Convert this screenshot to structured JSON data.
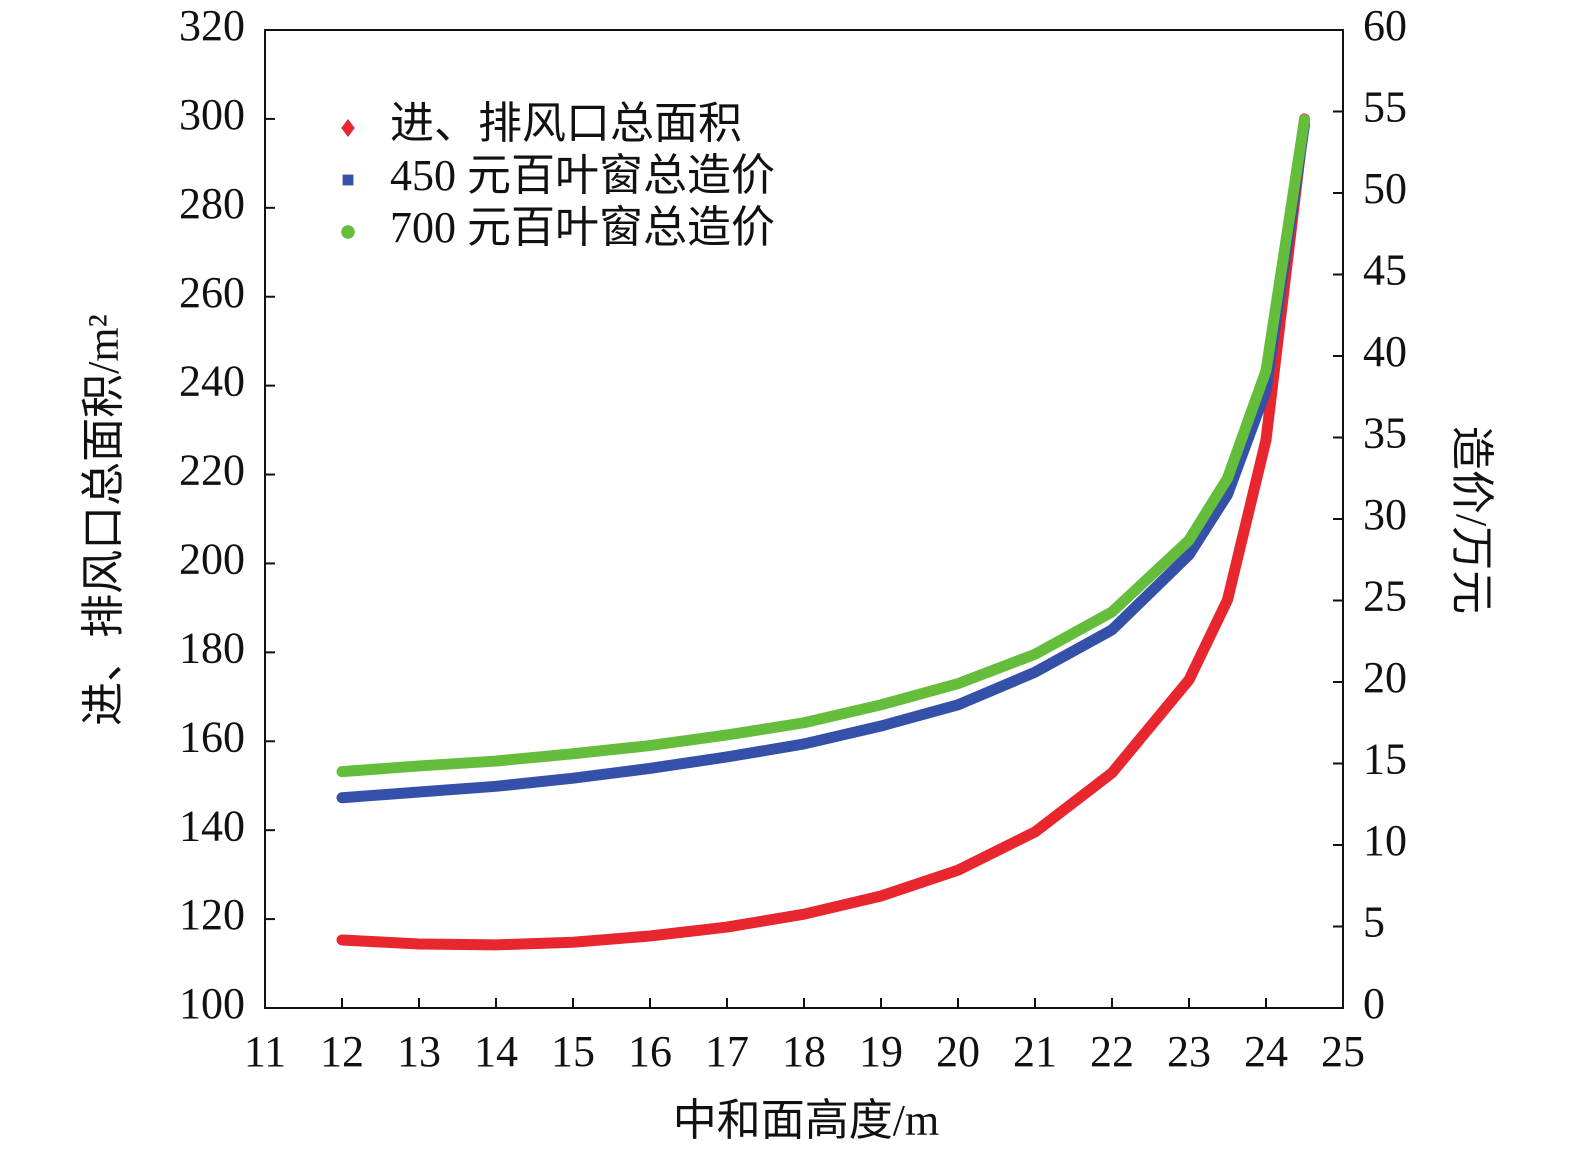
{
  "chart_data": {
    "type": "line",
    "x_label": "中和面高度/m",
    "y_label": "进、排风口总面积/m²",
    "y2_label": "造价/万元",
    "x": [
      12,
      13,
      14,
      15,
      16,
      17,
      18,
      19,
      20,
      21,
      22,
      23,
      23.5,
      24,
      24.5
    ],
    "series": [
      {
        "name": "进、排风口总面积",
        "color": "#e8262d",
        "marker": "diamond",
        "axis": "y",
        "values": [
          115.3,
          114.4,
          114.2,
          114.8,
          116.2,
          118.2,
          121.1,
          125.2,
          131,
          139.6,
          152.9,
          173.8,
          191.8,
          227.8,
          300
        ]
      },
      {
        "name": "450 元百叶窗总造价",
        "color": "#3550a8",
        "marker": "square",
        "axis": "y2",
        "values": [
          12.9,
          13.25,
          13.6,
          14.1,
          14.7,
          15.4,
          16.2,
          17.3,
          18.6,
          20.6,
          23.2,
          27.8,
          31.5,
          37.9,
          54.2
        ]
      },
      {
        "name": "700 元百叶窗总造价",
        "color": "#64be3c",
        "marker": "circle",
        "axis": "y2",
        "values": [
          14.5,
          14.85,
          15.15,
          15.6,
          16.1,
          16.75,
          17.5,
          18.6,
          19.9,
          21.7,
          24.3,
          28.7,
          32.5,
          39.1,
          54.5
        ]
      }
    ],
    "xlim": [
      11,
      25
    ],
    "xticks": [
      11,
      12,
      13,
      14,
      15,
      16,
      17,
      18,
      19,
      20,
      21,
      22,
      23,
      24,
      25
    ],
    "ylim": [
      100,
      320
    ],
    "yticks": [
      100,
      120,
      140,
      160,
      180,
      200,
      220,
      240,
      260,
      280,
      300,
      320
    ],
    "y2lim": [
      0,
      60
    ],
    "y2ticks": [
      0,
      5,
      10,
      15,
      20,
      25,
      30,
      35,
      40,
      45,
      50,
      55,
      60
    ],
    "legend": "upper left",
    "grid": false
  }
}
